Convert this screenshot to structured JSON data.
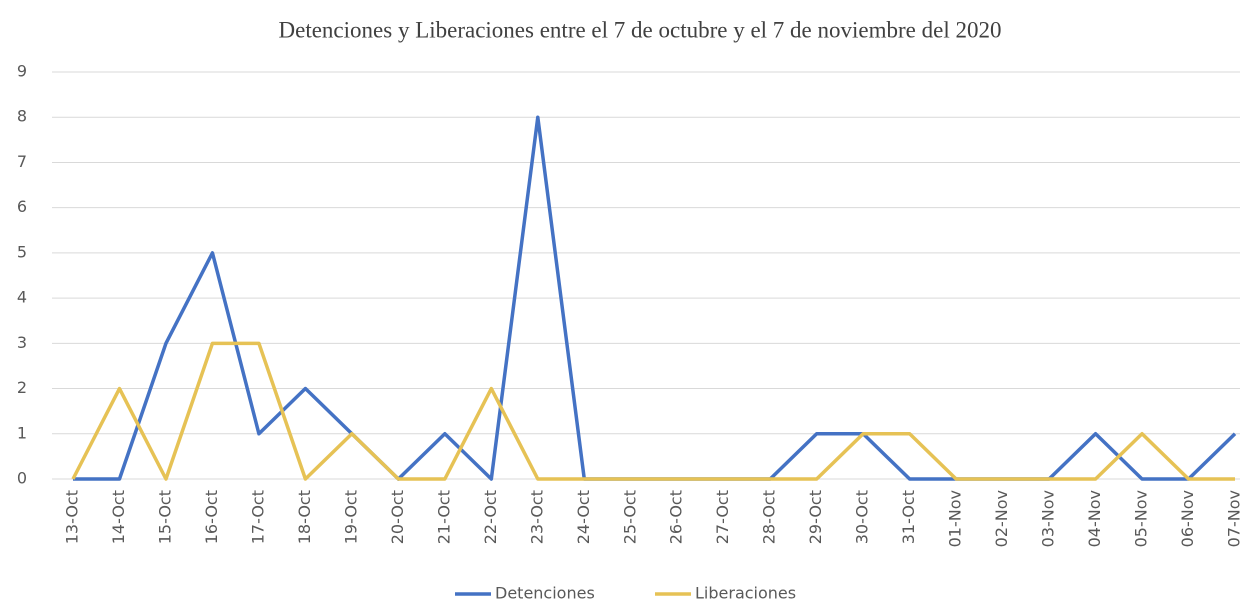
{
  "chart_data": {
    "type": "line",
    "title": "Detenciones y Liberaciones entre el 7 de octubre y el 7 de noviembre del  2020",
    "categories": [
      "13-Oct",
      "14-Oct",
      "15-Oct",
      "16-Oct",
      "17-Oct",
      "18-Oct",
      "19-Oct",
      "20-Oct",
      "21-Oct",
      "22-Oct",
      "23-Oct",
      "24-Oct",
      "25-Oct",
      "26-Oct",
      "27-Oct",
      "28-Oct",
      "29-Oct",
      "30-Oct",
      "31-Oct",
      "01-Nov",
      "02-Nov",
      "03-Nov",
      "04-Nov",
      "05-Nov",
      "06-Nov",
      "07-Nov"
    ],
    "series": [
      {
        "name": "Detenciones",
        "color": "#4472c4",
        "values": [
          0,
          0,
          3,
          5,
          1,
          2,
          1,
          0,
          1,
          0,
          8,
          0,
          0,
          0,
          0,
          0,
          1,
          1,
          0,
          0,
          0,
          0,
          1,
          0,
          0,
          1
        ]
      },
      {
        "name": "Liberaciones",
        "color": "#e6c255",
        "values": [
          0,
          2,
          0,
          3,
          3,
          0,
          1,
          0,
          0,
          2,
          0,
          0,
          0,
          0,
          0,
          0,
          0,
          1,
          1,
          0,
          0,
          0,
          0,
          1,
          0,
          0
        ]
      }
    ],
    "ylim": [
      0,
      9
    ],
    "yticks": [
      0,
      1,
      2,
      3,
      4,
      5,
      6,
      7,
      8,
      9
    ],
    "grid": true,
    "legend": "bottom"
  }
}
